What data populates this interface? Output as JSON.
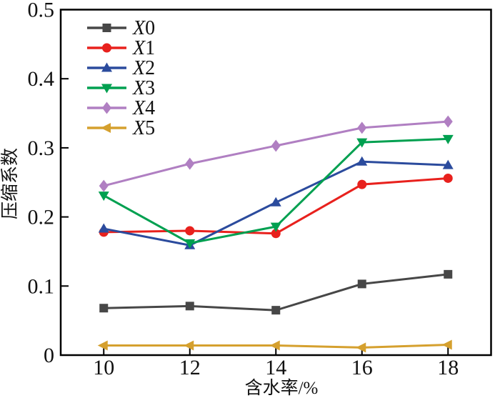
{
  "chart_data": {
    "type": "line",
    "title": "",
    "xlabel": "含水率/%",
    "ylabel": "压缩系数",
    "xlim": [
      9,
      19
    ],
    "ylim": [
      0,
      0.5
    ],
    "grid": false,
    "legend_position": "inside-top-left",
    "frame": "full-box",
    "tick_direction": "in",
    "x": [
      10,
      12,
      14,
      16,
      18
    ],
    "xticks": [
      {
        "value": 10,
        "label": "10"
      },
      {
        "value": 12,
        "label": "12"
      },
      {
        "value": 14,
        "label": "14"
      },
      {
        "value": 16,
        "label": "16"
      },
      {
        "value": 18,
        "label": "18"
      }
    ],
    "yticks": [
      {
        "value": 0,
        "label": "0"
      },
      {
        "value": 0.1,
        "label": "0.1"
      },
      {
        "value": 0.2,
        "label": "0.2"
      },
      {
        "value": 0.3,
        "label": "0.3"
      },
      {
        "value": 0.4,
        "label": "0.4"
      },
      {
        "value": 0.5,
        "label": "0.5"
      }
    ],
    "series": [
      {
        "name": "X0",
        "marker": "square",
        "color": "#474747",
        "values": [
          0.068,
          0.071,
          0.065,
          0.103,
          0.117
        ]
      },
      {
        "name": "X1",
        "marker": "circle",
        "color": "#E8211D",
        "values": [
          0.178,
          0.18,
          0.176,
          0.247,
          0.256
        ]
      },
      {
        "name": "X2",
        "marker": "triangle-up",
        "color": "#2B4B9D",
        "values": [
          0.183,
          0.159,
          0.221,
          0.28,
          0.275
        ]
      },
      {
        "name": "X3",
        "marker": "triangle-down",
        "color": "#00A050",
        "values": [
          0.231,
          0.162,
          0.186,
          0.308,
          0.313
        ]
      },
      {
        "name": "X4",
        "marker": "diamond",
        "color": "#B07FC2",
        "values": [
          0.245,
          0.277,
          0.303,
          0.329,
          0.338
        ]
      },
      {
        "name": "X5",
        "marker": "triangle-left",
        "color": "#D5A02E",
        "values": [
          0.014,
          0.014,
          0.014,
          0.011,
          0.015
        ]
      }
    ]
  }
}
